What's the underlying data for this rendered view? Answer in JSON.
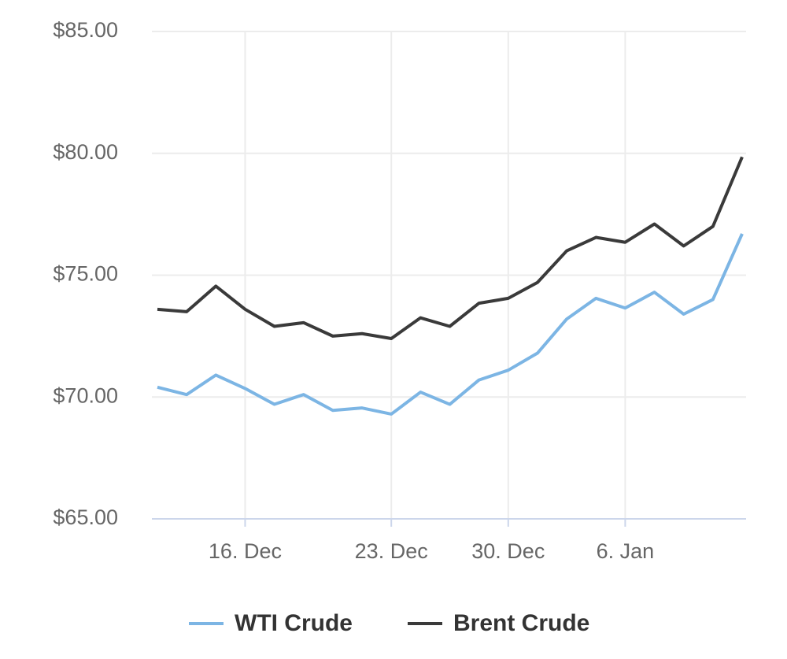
{
  "chart_data": {
    "type": "line",
    "categories": [
      null,
      null,
      null,
      "16. Dec",
      null,
      null,
      null,
      null,
      "23. Dec",
      null,
      null,
      null,
      "30. Dec",
      null,
      null,
      null,
      "6. Jan",
      null,
      null,
      null,
      null
    ],
    "series": [
      {
        "name": "WTI Crude",
        "color": "#7cb5e4",
        "values": [
          70.4,
          70.1,
          70.9,
          70.35,
          69.7,
          70.1,
          69.45,
          69.55,
          69.3,
          70.2,
          69.7,
          70.7,
          71.1,
          71.8,
          73.2,
          74.05,
          73.65,
          74.3,
          73.4,
          74.0,
          76.7
        ]
      },
      {
        "name": "Brent Crude",
        "color": "#3a3a3a",
        "values": [
          73.6,
          73.5,
          74.55,
          73.6,
          72.9,
          73.05,
          72.5,
          72.6,
          72.4,
          73.25,
          72.9,
          73.85,
          74.05,
          74.7,
          76.0,
          76.55,
          76.35,
          77.1,
          76.2,
          77.0,
          79.85
        ]
      }
    ],
    "ylim": [
      65,
      85
    ],
    "yticks": [
      {
        "value": 65,
        "label": "$65.00"
      },
      {
        "value": 70,
        "label": "$70.00"
      },
      {
        "value": 75,
        "label": "$75.00"
      },
      {
        "value": 80,
        "label": "$80.00"
      },
      {
        "value": 85,
        "label": "$85.00"
      }
    ],
    "grid": true
  }
}
